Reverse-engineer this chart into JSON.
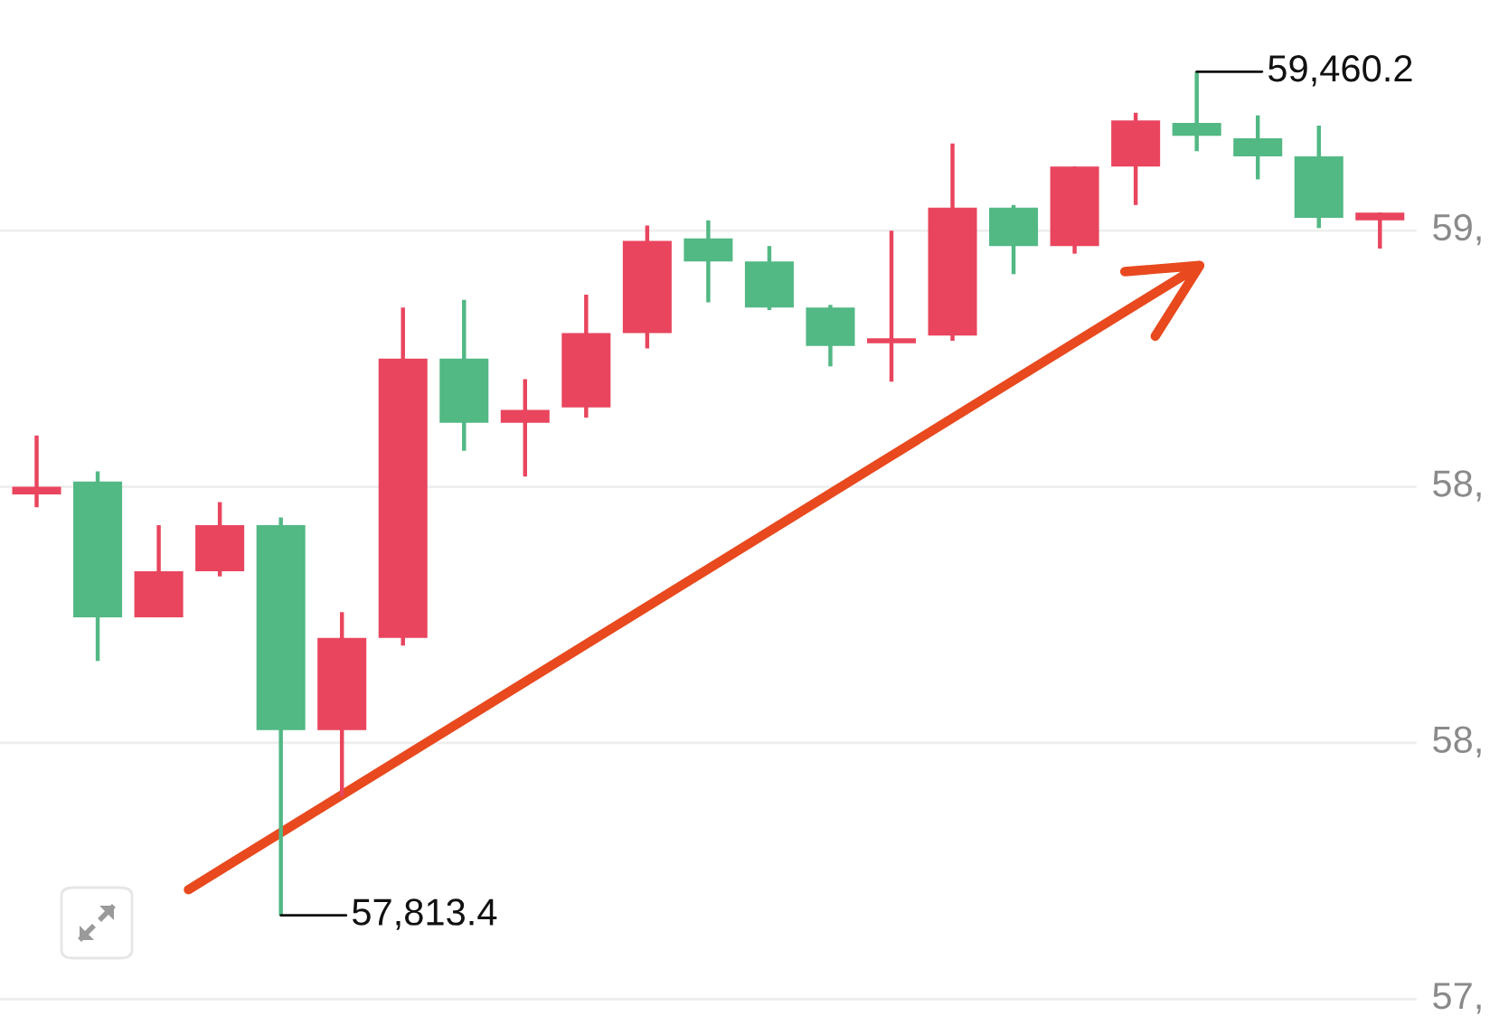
{
  "chart_data": {
    "type": "candlestick",
    "categories": [
      null,
      null,
      null,
      null,
      null,
      null,
      null,
      null,
      null,
      null,
      null,
      null,
      null,
      null,
      null,
      null,
      null,
      null,
      null,
      null,
      null,
      null,
      null
    ],
    "ohlc": [
      [
        58635,
        58750,
        58610,
        58650
      ],
      [
        58660,
        58680,
        58310,
        58395
      ],
      [
        58395,
        58575,
        58395,
        58485
      ],
      [
        58485,
        58620,
        58475,
        58575
      ],
      [
        58575,
        58590,
        57813.4,
        58175
      ],
      [
        58175,
        58405,
        58045,
        58355
      ],
      [
        58355,
        59000,
        58340,
        58900
      ],
      [
        58900,
        59015,
        58720,
        58775
      ],
      [
        58775,
        58860,
        58670,
        58800
      ],
      [
        58805,
        59025,
        58785,
        58950
      ],
      [
        58950,
        59160,
        58920,
        59130
      ],
      [
        59135,
        59170,
        59010,
        59090
      ],
      [
        59090,
        59120,
        58995,
        59000
      ],
      [
        59000,
        59005,
        58885,
        58925
      ],
      [
        58930,
        59150,
        58855,
        58940
      ],
      [
        58945,
        59320,
        58935,
        59195
      ],
      [
        59195,
        59200,
        59065,
        59120
      ],
      [
        59120,
        59275,
        59105,
        59275
      ],
      [
        59275,
        59380,
        59200,
        59365
      ],
      [
        59360,
        59460.2,
        59305,
        59335
      ],
      [
        59330,
        59375,
        59250,
        59295
      ],
      [
        59295,
        59355,
        59155,
        59175
      ],
      [
        59170,
        59185,
        59115,
        59185
      ]
    ],
    "colors": [
      "#e9455e",
      "#52b884",
      "#e9455e",
      "#e9455e",
      "#52b884",
      "#e9455e",
      "#e9455e",
      "#52b884",
      "#e9455e",
      "#e9455e",
      "#e9455e",
      "#52b884",
      "#52b884",
      "#52b884",
      "#e9455e",
      "#e9455e",
      "#52b884",
      "#e9455e",
      "#e9455e",
      "#52b884",
      "#52b884",
      "#52b884",
      "#e9455e"
    ],
    "yticks": [
      {
        "value": 57650,
        "label": null
      },
      {
        "value": 58150,
        "label": null
      },
      {
        "value": 58650,
        "label": null
      },
      {
        "value": 59150,
        "label": null
      }
    ],
    "grid": "y",
    "annotations": [
      "59,460.2",
      "57,813.4",
      "59,",
      "58,",
      "58,",
      "57,"
    ]
  }
}
